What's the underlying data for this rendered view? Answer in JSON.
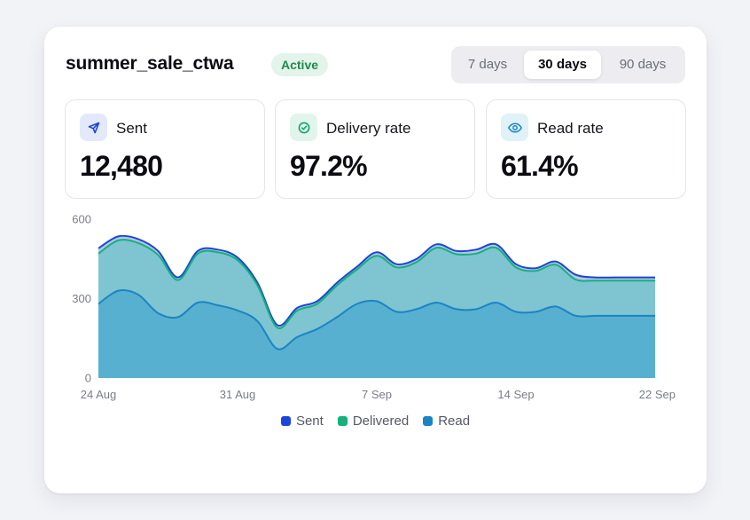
{
  "campaign": {
    "name": "summer_sale_ctwa",
    "status": "Active"
  },
  "range_tabs": [
    {
      "label": "7 days",
      "selected": false
    },
    {
      "label": "30 days",
      "selected": true
    },
    {
      "label": "90 days",
      "selected": false
    }
  ],
  "stats": [
    {
      "label": "Sent",
      "value": "12,480",
      "icon": "send-icon"
    },
    {
      "label": "Delivery rate",
      "value": "97.2%",
      "icon": "check-circle-icon"
    },
    {
      "label": "Read rate",
      "value": "61.4%",
      "icon": "eye-icon"
    }
  ],
  "colors": {
    "sent": "#1d46d8",
    "delivered": "#12b27a",
    "read": "#1a85c4",
    "badge_bg": "#e3f4ea",
    "badge_text": "#1f8a4d"
  },
  "chart_data": {
    "type": "area",
    "ylim": [
      0,
      600
    ],
    "yticks": [
      0,
      300,
      600
    ],
    "xticks": [
      {
        "label": "24 Aug",
        "index": 0
      },
      {
        "label": "31 Aug",
        "index": 7
      },
      {
        "label": "7 Sep",
        "index": 14
      },
      {
        "label": "14 Sep",
        "index": 21
      },
      {
        "label": "22 Sep",
        "index": 28
      }
    ],
    "series": [
      {
        "name": "Sent",
        "values": [
          490,
          535,
          525,
          480,
          380,
          480,
          485,
          455,
          360,
          200,
          265,
          290,
          360,
          420,
          475,
          430,
          450,
          505,
          480,
          485,
          505,
          430,
          415,
          440,
          390,
          380,
          380,
          380,
          380
        ]
      },
      {
        "name": "Delivered",
        "values": [
          470,
          520,
          510,
          465,
          370,
          470,
          475,
          445,
          350,
          190,
          255,
          280,
          350,
          410,
          462,
          418,
          438,
          492,
          468,
          470,
          492,
          418,
          405,
          428,
          372,
          368,
          368,
          368,
          368
        ]
      },
      {
        "name": "Read",
        "values": [
          280,
          330,
          315,
          245,
          230,
          285,
          275,
          255,
          215,
          110,
          155,
          185,
          230,
          280,
          290,
          250,
          260,
          285,
          260,
          260,
          285,
          250,
          250,
          270,
          235,
          235,
          235,
          235,
          235
        ]
      }
    ]
  }
}
